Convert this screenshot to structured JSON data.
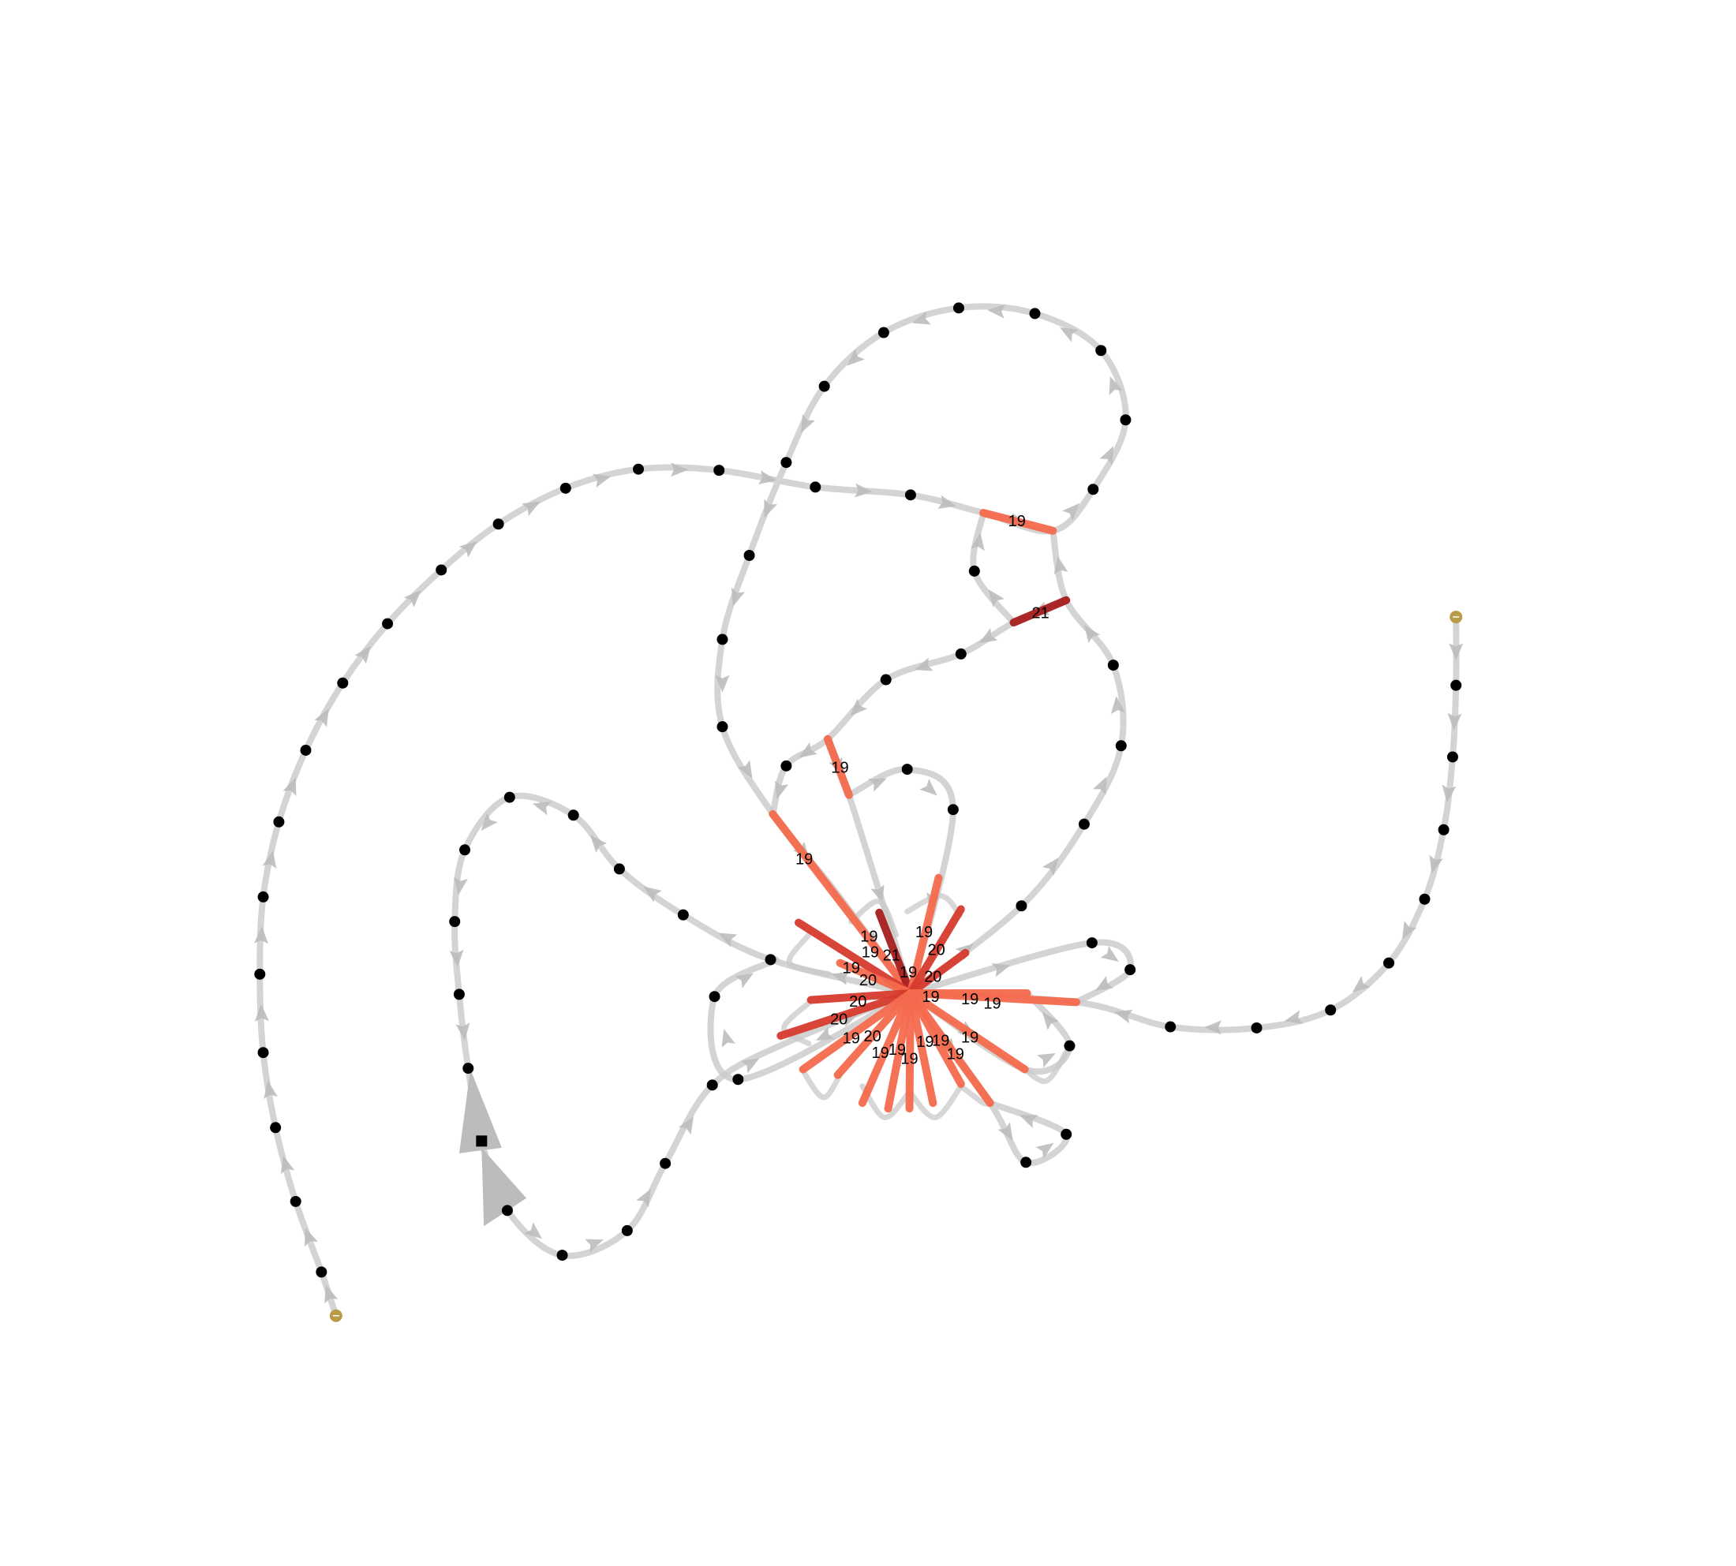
{
  "diagram": {
    "type": "directed-graph",
    "colors": {
      "edge": "#c9c9c9",
      "arrow": "#bcbcbc",
      "node": "#000000",
      "terminal": "#b89a48",
      "hi19": "#f46a4e",
      "hi20": "#d63a2c",
      "hi21": "#a81e1e"
    },
    "labels": [
      "19",
      "21",
      "19",
      "19",
      "19",
      "19",
      "20",
      "19",
      "21",
      "19",
      "19",
      "20",
      "20",
      "20",
      "20",
      "19",
      "19",
      "19",
      "20",
      "19",
      "19",
      "19",
      "19",
      "19",
      "19",
      "19",
      "19"
    ]
  }
}
